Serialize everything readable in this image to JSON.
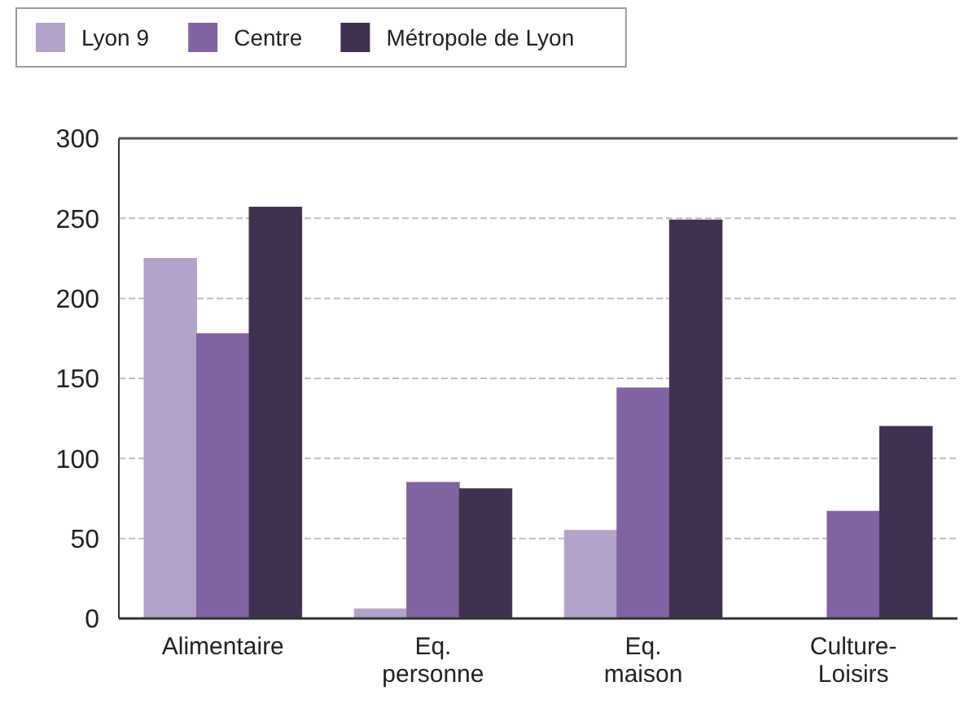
{
  "chart_data": {
    "type": "bar",
    "categories": [
      "Alimentaire",
      "Eq. personne",
      "Eq. maison",
      "Culture-Loisirs"
    ],
    "series": [
      {
        "name": "Lyon 9",
        "color": "#b3a2c8",
        "values": [
          225,
          6,
          55,
          0
        ]
      },
      {
        "name": "Centre",
        "color": "#8064a2",
        "values": [
          178,
          85,
          144,
          67
        ]
      },
      {
        "name": "Métropole de Lyon",
        "color": "#403151",
        "values": [
          257,
          81,
          249,
          120
        ]
      }
    ],
    "ylim": [
      0,
      300
    ],
    "yticks": [
      0,
      50,
      100,
      150,
      200,
      250,
      300
    ],
    "grid": "y",
    "legend": "top left"
  }
}
